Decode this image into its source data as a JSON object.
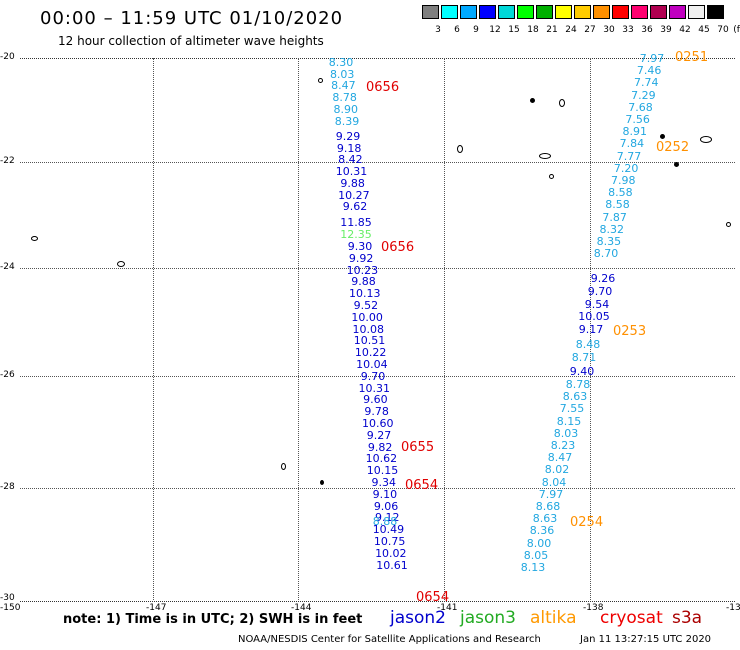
{
  "header": {
    "title": "00:00 – 11:59 UTC 01/10/2020",
    "subtitle": "12 hour collection of altimeter wave heights"
  },
  "legend": {
    "unit": "(ft)",
    "colors": [
      "#7f7f7f",
      "#00ffff",
      "#00a9ff",
      "#0000ff",
      "#00d8d8",
      "#00ff00",
      "#00b000",
      "#ffff00",
      "#ffcc00",
      "#ff9000",
      "#ff0000",
      "#ff0070",
      "#b00050",
      "#c000c0",
      "#f0f0f0",
      "#000000"
    ],
    "labels": [
      "3",
      "6",
      "9",
      "12",
      "15",
      "18",
      "21",
      "24",
      "27",
      "30",
      "33",
      "36",
      "39",
      "42",
      "45",
      "70"
    ]
  },
  "axes": {
    "lat_labels": [
      "-20",
      "-22",
      "-24",
      "-26",
      "-28",
      "-30"
    ],
    "lon_labels": [
      "-150",
      "-147",
      "-144",
      "-141",
      "-138",
      "-13"
    ]
  },
  "tracks": {
    "jason2": {
      "color": "#0000cc",
      "values": [
        "9.29",
        "9.18",
        "8.42",
        "10.31",
        "9.88",
        "10.27",
        "9.62",
        "11.85",
        "9.30",
        "9.92",
        "10.23",
        "9.88",
        "10.13",
        "9.52",
        "10.00",
        "10.08",
        "10.51",
        "10.22",
        "10.04",
        "9.70",
        "10.31",
        "9.60",
        "9.78",
        "10.60",
        "9.27",
        "9.82",
        "10.62",
        "10.15",
        "9.34",
        "9.10",
        "9.06",
        "9.12",
        "10.49",
        "10.75",
        "10.02",
        "10.61"
      ],
      "jason2_high": "12.35"
    },
    "west_light": {
      "color": "#22a7e0",
      "values": [
        "8.30",
        "8.03",
        "8.47",
        "8.78",
        "8.90",
        "8.39"
      ],
      "tail": "8.88"
    },
    "east": {
      "color": "#22a7e0",
      "values": [
        "7.97",
        "7.46",
        "7.74",
        "7.29",
        "7.68",
        "7.56",
        "8.91",
        "7.84",
        "7.77",
        "7.20",
        "7.98",
        "8.58",
        "8.58",
        "7.87",
        "8.32",
        "8.35",
        "8.70"
      ],
      "dark_values": [
        "9.26",
        "9.70",
        "9.54",
        "10.05",
        "9.17"
      ],
      "more": [
        "8.48",
        "8.71",
        "9.40",
        "8.78",
        "8.63",
        "7.55",
        "8.15",
        "8.03",
        "8.23",
        "8.47",
        "8.02",
        "8.04",
        "7.97",
        "8.68",
        "8.63",
        "8.36",
        "8.00",
        "8.05",
        "8.13"
      ]
    },
    "times": {
      "t0656a": "0656",
      "t0656b": "0656",
      "t0655": "0655",
      "t0654a": "0654",
      "t0654b": "0654",
      "t0251": "0251",
      "t0252": "0252",
      "t0253": "0253",
      "t0254": "0254"
    }
  },
  "footer": {
    "note": "note:  1) Time is in UTC;  2) SWH is in feet",
    "satellites": [
      {
        "name": "jason2",
        "color": "#0000cc"
      },
      {
        "name": "jason3",
        "color": "#22aa22"
      },
      {
        "name": "altika",
        "color": "#ff9900"
      },
      {
        "name": "cryosat",
        "color": "#ee0000"
      },
      {
        "name": "s3a",
        "color": "#aa0000"
      }
    ],
    "credit": "NOAA/NESDIS Center for Satellite Applications and Research",
    "stamp": "Jan 11 13:27:15 UTC 2020"
  }
}
